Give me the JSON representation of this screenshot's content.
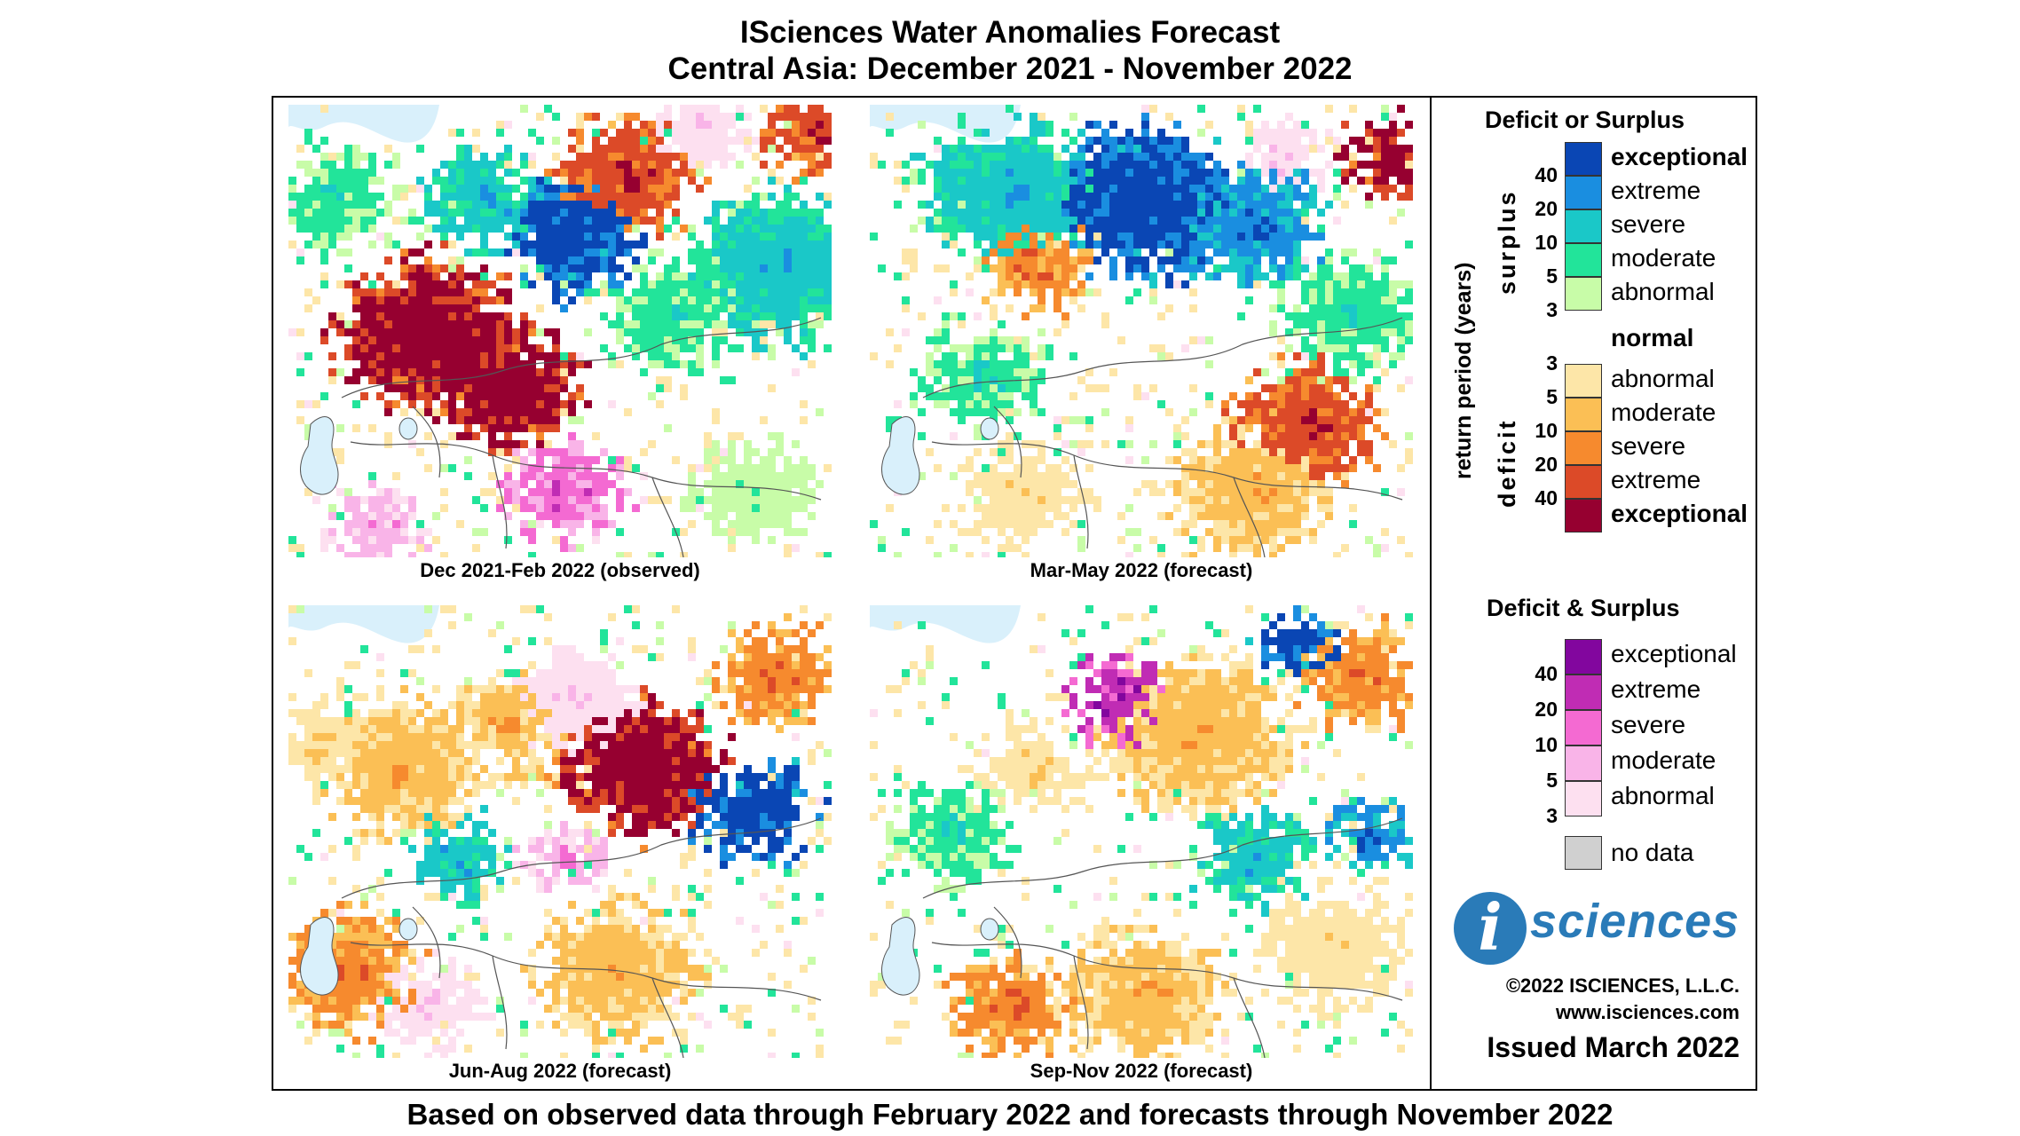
{
  "title": {
    "line1": "ISciences Water Anomalies Forecast",
    "line2": "Central Asia: December 2021 - November 2022"
  },
  "panels": [
    {
      "caption": "Dec 2021-Feb 2022 (observed)",
      "seed": 11,
      "profile": "p1"
    },
    {
      "caption": "Mar-May 2022 (forecast)",
      "seed": 23,
      "profile": "p2"
    },
    {
      "caption": "Jun-Aug 2022 (forecast)",
      "seed": 37,
      "profile": "p3"
    },
    {
      "caption": "Sep-Nov 2022 (forecast)",
      "seed": 53,
      "profile": "p4"
    }
  ],
  "legend": {
    "title1": "Deficit or Surplus",
    "axis_label": "return period (years)",
    "surplus_label": "surplus",
    "deficit_label": "deficit",
    "surplus": [
      {
        "label": "exceptional",
        "color": "#0a46b4",
        "bold": true
      },
      {
        "label": "extreme",
        "color": "#1a8ee0",
        "bold": false
      },
      {
        "label": "severe",
        "color": "#1ac8c8",
        "bold": false
      },
      {
        "label": "moderate",
        "color": "#22e49a",
        "bold": false
      },
      {
        "label": "abnormal",
        "color": "#c8fca8",
        "bold": false
      }
    ],
    "normal": {
      "label": "normal",
      "color": "#ffffff"
    },
    "deficit": [
      {
        "label": "abnormal",
        "color": "#fde6a8",
        "bold": false
      },
      {
        "label": "moderate",
        "color": "#fbbf55",
        "bold": false
      },
      {
        "label": "severe",
        "color": "#f68a2e",
        "bold": false
      },
      {
        "label": "extreme",
        "color": "#dc4a28",
        "bold": false
      },
      {
        "label": "exceptional",
        "color": "#960030",
        "bold": true
      }
    ],
    "surplus_ticks": [
      "40",
      "20",
      "10",
      "5",
      "3"
    ],
    "deficit_ticks": [
      "3",
      "5",
      "10",
      "20",
      "40"
    ],
    "title2": "Deficit & Surplus",
    "both": [
      {
        "label": "exceptional",
        "color": "#82069e"
      },
      {
        "label": "extreme",
        "color": "#c02cb4"
      },
      {
        "label": "severe",
        "color": "#f46ad2"
      },
      {
        "label": "moderate",
        "color": "#f9b4e8"
      },
      {
        "label": "abnormal",
        "color": "#fde0f0"
      }
    ],
    "both_ticks": [
      "40",
      "20",
      "10",
      "5",
      "3"
    ],
    "nodata": {
      "label": "no data",
      "color": "#d0d0d0"
    }
  },
  "logo": {
    "letter": "i",
    "text": "sciences"
  },
  "copyright": "©2022 ISCIENCES, L.L.C.",
  "website": "www.isciences.com",
  "issued": "Issued March 2022",
  "footer": "Based on observed data through February 2022 and forecasts through November 2022"
}
